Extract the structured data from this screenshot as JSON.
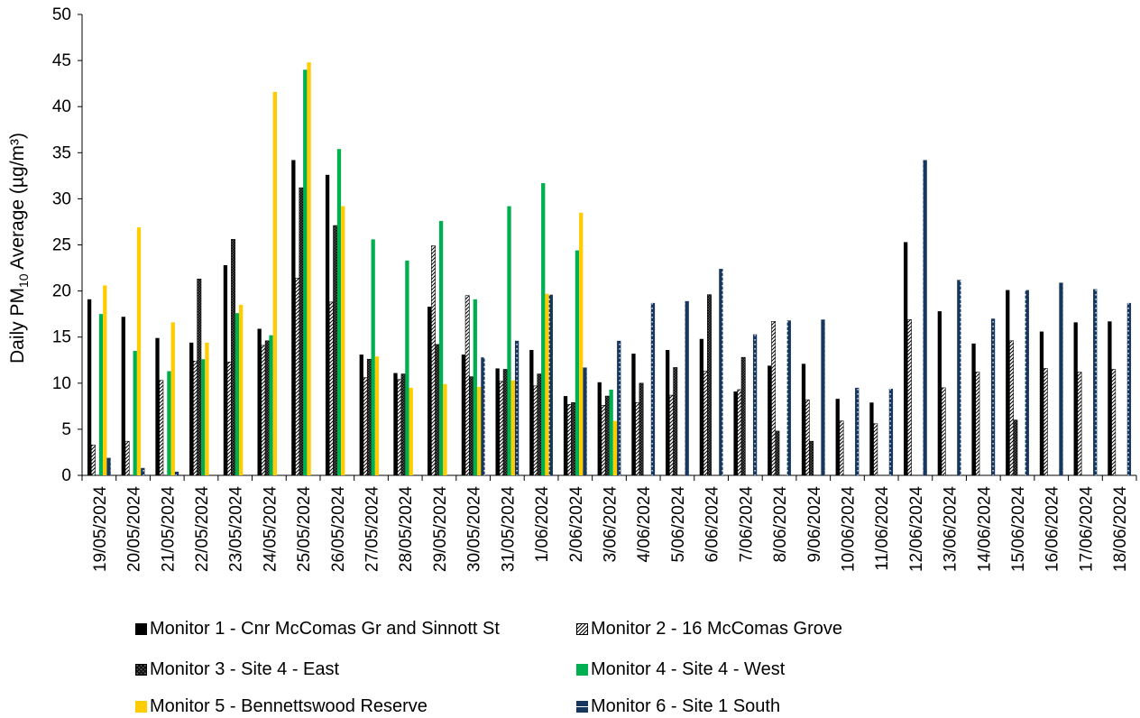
{
  "chart_data": {
    "type": "bar",
    "title": "",
    "ylabel_prefix": "Daily PM",
    "ylabel_sub": "10",
    "ylabel_suffix": " Average (µg/m³)",
    "ylim": [
      0,
      50
    ],
    "yticks": [
      0,
      5,
      10,
      15,
      20,
      25,
      30,
      35,
      40,
      45,
      50
    ],
    "grid": false,
    "legend_position": "bottom",
    "categories": [
      "19/05/2024",
      "20/05/2024",
      "21/05/2024",
      "22/05/2024",
      "23/05/2024",
      "24/05/2024",
      "25/05/2024",
      "26/05/2024",
      "27/05/2024",
      "28/05/2024",
      "29/05/2024",
      "30/05/2024",
      "31/05/2024",
      "1/06/2024",
      "2/06/2024",
      "3/06/2024",
      "4/06/2024",
      "5/06/2024",
      "6/06/2024",
      "7/06/2024",
      "8/06/2024",
      "9/06/2024",
      "10/06/2024",
      "11/06/2024",
      "12/06/2024",
      "13/06/2024",
      "14/06/2024",
      "15/06/2024",
      "16/06/2024",
      "17/06/2024",
      "18/06/2024"
    ],
    "series": [
      {
        "name": "Monitor 1 - Cnr McComas Gr and Sinnott St",
        "color": "#000000",
        "pattern": "solid",
        "values": [
          19.1,
          17.2,
          14.9,
          14.4,
          22.8,
          15.9,
          34.2,
          32.6,
          13.1,
          11.1,
          18.3,
          13.1,
          11.6,
          13.6,
          8.6,
          10.1,
          13.2,
          13.6,
          14.8,
          9.1,
          11.9,
          12.1,
          8.3,
          7.9,
          25.3,
          17.8,
          14.3,
          20.1,
          15.6,
          16.6,
          16.7
        ]
      },
      {
        "name": "Monitor 2 - 16 McComas Grove",
        "color": "#000000",
        "pattern": "diag",
        "values": [
          3.3,
          3.7,
          10.3,
          12.4,
          12.3,
          14.1,
          21.4,
          18.8,
          10.6,
          10.4,
          24.9,
          19.5,
          10.2,
          9.7,
          7.7,
          7.6,
          7.9,
          8.7,
          11.3,
          9.3,
          16.7,
          8.2,
          5.9,
          5.6,
          16.9,
          9.5,
          11.2,
          14.6,
          11.6,
          11.2,
          11.5
        ]
      },
      {
        "name": "Monitor 3 - Site 4 - East",
        "color": "#000000",
        "pattern": "cross",
        "values": [
          null,
          null,
          null,
          21.3,
          25.6,
          14.6,
          31.2,
          27.1,
          12.6,
          11.0,
          14.2,
          10.7,
          11.5,
          11.0,
          7.9,
          8.6,
          10.0,
          11.7,
          19.6,
          12.8,
          4.8,
          3.7,
          null,
          null,
          null,
          null,
          null,
          6.0,
          null,
          null,
          null
        ]
      },
      {
        "name": "Monitor 4 - Site 4 - West",
        "color": "#00B050",
        "pattern": "solid",
        "values": [
          17.5,
          13.5,
          11.3,
          12.6,
          17.6,
          15.2,
          44.0,
          35.4,
          25.6,
          23.3,
          27.6,
          19.1,
          29.2,
          31.7,
          24.4,
          9.3,
          null,
          null,
          null,
          null,
          null,
          null,
          null,
          null,
          null,
          null,
          null,
          null,
          null,
          null,
          null
        ]
      },
      {
        "name": "Monitor 5 - Bennettswood Reserve",
        "color": "#FFCC00",
        "pattern": "solid",
        "values": [
          20.6,
          26.9,
          16.6,
          14.4,
          18.5,
          41.6,
          44.8,
          29.2,
          12.9,
          9.5,
          9.9,
          9.6,
          10.3,
          19.7,
          28.5,
          5.9,
          null,
          null,
          null,
          null,
          null,
          null,
          null,
          null,
          null,
          null,
          null,
          null,
          null,
          null,
          null
        ]
      },
      {
        "name": "Monitor 6 - Site 1 South",
        "color": "#17375E",
        "pattern": "dotted",
        "values": [
          1.9,
          0.8,
          0.4,
          null,
          null,
          null,
          null,
          null,
          null,
          null,
          null,
          12.8,
          14.6,
          19.6,
          11.7,
          14.6,
          18.7,
          18.9,
          22.4,
          15.3,
          16.8,
          16.9,
          9.5,
          9.4,
          34.2,
          21.2,
          17.0,
          20.1,
          20.9,
          20.2,
          18.7
        ]
      }
    ]
  }
}
